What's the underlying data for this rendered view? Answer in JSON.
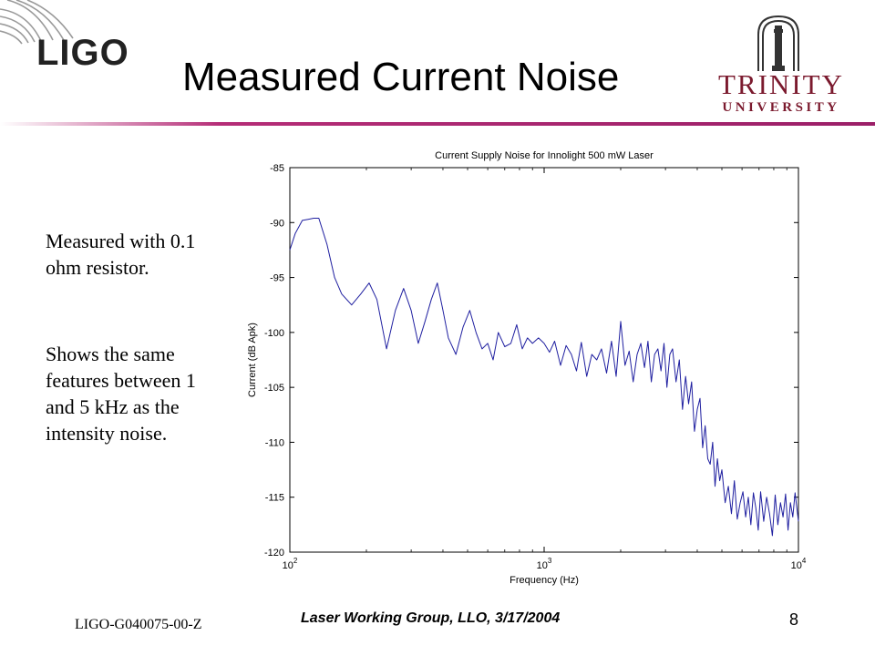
{
  "slide": {
    "title": "Measured Current Noise",
    "logo_left": "LIGO",
    "logo_right_name": "TRINITY",
    "logo_right_sub": "UNIVERSITY",
    "side_text_1": "Measured with 0.1 ohm resistor.",
    "side_text_2": "Shows the same features between 1 and 5 kHz as the intensity noise.",
    "footer_id": "LIGO-G040075-00-Z",
    "footer_center": "Laser Working Group, LLO, 3/17/2004",
    "page_number": "8",
    "accent_color": "#9b1f68"
  },
  "chart_data": {
    "type": "line",
    "title": "Current Supply Noise for Innolight 500 mW Laser",
    "xlabel": "Frequency (Hz)",
    "ylabel": "Current (dB Apk)",
    "x_scale": "log",
    "xlim": [
      100,
      10000
    ],
    "ylim": [
      -120,
      -85
    ],
    "x_ticks": [
      {
        "value": 100,
        "base": "10",
        "exp": "2"
      },
      {
        "value": 1000,
        "base": "10",
        "exp": "3"
      },
      {
        "value": 10000,
        "base": "10",
        "exp": "4"
      }
    ],
    "y_ticks": [
      -85,
      -90,
      -95,
      -100,
      -105,
      -110,
      -115,
      -120
    ],
    "y_tick_labels": [
      "-85",
      "-90",
      "-95",
      "-100",
      "-105",
      "-110",
      "-115",
      "-120"
    ],
    "grid": false,
    "line_color": "#1f1fa0",
    "series": [
      {
        "x": [
          100,
          105,
          112,
          118,
          124,
          130,
          140,
          150,
          160,
          175,
          190,
          205,
          220,
          240,
          260,
          280,
          300,
          320,
          340,
          360,
          380,
          400,
          420,
          450,
          480,
          510,
          540,
          570,
          600,
          630,
          660,
          700,
          740,
          780,
          820,
          860,
          900,
          950,
          1000,
          1050,
          1100,
          1160,
          1220,
          1280,
          1340,
          1400,
          1470,
          1540,
          1610,
          1680,
          1760,
          1840,
          1920,
          2000,
          2080,
          2160,
          2240,
          2320,
          2400,
          2480,
          2560,
          2640,
          2720,
          2800,
          2880,
          2960,
          3040,
          3120,
          3200,
          3300,
          3400,
          3500,
          3600,
          3700,
          3800,
          3900,
          4000,
          4100,
          4200,
          4300,
          4400,
          4500,
          4600,
          4700,
          4800,
          4900,
          5000,
          5150,
          5300,
          5450,
          5600,
          5750,
          5900,
          6050,
          6200,
          6350,
          6500,
          6650,
          6800,
          6950,
          7100,
          7300,
          7500,
          7700,
          7900,
          8100,
          8300,
          8500,
          8700,
          8900,
          9100,
          9300,
          9500,
          9700,
          10000
        ],
        "y": [
          -92.5,
          -91,
          -89.8,
          -89.7,
          -89.6,
          -89.6,
          -92,
          -95,
          -96.5,
          -97.5,
          -96.5,
          -95.5,
          -97,
          -101.5,
          -98,
          -96,
          -98,
          -101,
          -99,
          -97,
          -95.5,
          -98,
          -100.5,
          -102,
          -99.5,
          -98,
          -100,
          -101.5,
          -101,
          -102.5,
          -100,
          -101.3,
          -101,
          -99.3,
          -101.5,
          -100.5,
          -101,
          -100.5,
          -101,
          -101.8,
          -100.8,
          -103,
          -101.2,
          -102,
          -103.5,
          -100.9,
          -104,
          -102,
          -102.5,
          -101.5,
          -103.7,
          -100.8,
          -104,
          -99,
          -103,
          -101.7,
          -104.5,
          -102,
          -101,
          -103.2,
          -100.8,
          -104.5,
          -102,
          -101.5,
          -103.5,
          -101,
          -105,
          -102,
          -101.5,
          -104.5,
          -102.5,
          -107,
          -104,
          -106.5,
          -104.5,
          -109,
          -107,
          -106,
          -110.5,
          -108.5,
          -111.5,
          -112,
          -110,
          -114,
          -111.5,
          -113.5,
          -112.5,
          -115.5,
          -114,
          -116.5,
          -113.5,
          -117,
          -115.5,
          -114.5,
          -116.8,
          -115,
          -117.5,
          -114.6,
          -116,
          -118,
          -114.5,
          -117.2,
          -115,
          -116.5,
          -118.5,
          -114.8,
          -117.5,
          -115.5,
          -116.8,
          -114.7,
          -118,
          -115.5,
          -116.8,
          -114.6,
          -117.2
        ]
      }
    ]
  }
}
